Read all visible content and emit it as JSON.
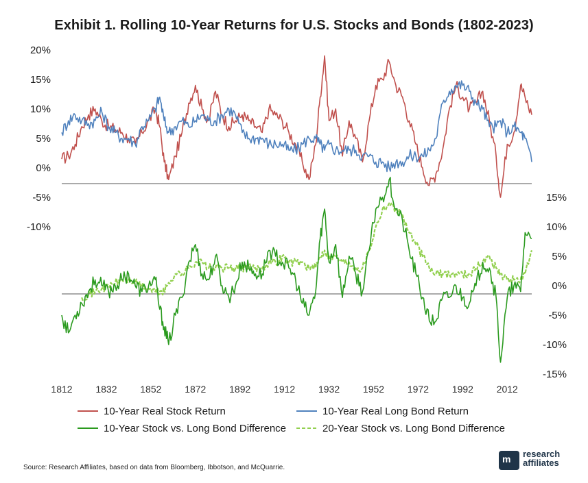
{
  "title": "Exhibit 1. Rolling 10-Year Returns for U.S. Stocks and Bonds (1802-2023)",
  "source": "Source: Research Affiliates, based on data from Bloomberg, Ibbotson, and McQuarrie.",
  "logo": {
    "line1": "research",
    "line2": "affiliates",
    "mark": "m",
    "icon": "research-affiliates-logo-icon"
  },
  "colors": {
    "stock": "#c0504d",
    "bond": "#4f81bd",
    "diff10": "#2a9a1e",
    "diff20": "#92d050"
  },
  "chart_data": [
    {
      "type": "line",
      "panel": "top",
      "ylim": [
        -5,
        20
      ],
      "yticks": [
        "20%",
        "15%",
        "10%",
        "5%",
        "0%",
        "-5%",
        "-10%"
      ],
      "xlim": [
        1812,
        2023
      ],
      "x": [
        1812,
        1815,
        1818,
        1821,
        1824,
        1827,
        1830,
        1833,
        1836,
        1839,
        1842,
        1845,
        1848,
        1851,
        1854,
        1856,
        1858,
        1860,
        1863,
        1866,
        1869,
        1872,
        1875,
        1878,
        1881,
        1884,
        1887,
        1890,
        1893,
        1896,
        1899,
        1902,
        1905,
        1908,
        1911,
        1914,
        1917,
        1920,
        1923,
        1926,
        1928,
        1930,
        1932,
        1935,
        1938,
        1941,
        1944,
        1947,
        1950,
        1953,
        1956,
        1959,
        1962,
        1965,
        1968,
        1971,
        1974,
        1977,
        1980,
        1983,
        1986,
        1989,
        1992,
        1995,
        1998,
        2001,
        2004,
        2007,
        2009,
        2012,
        2015,
        2018,
        2020,
        2023
      ],
      "series": [
        {
          "name": "10-Year Real Stock Return",
          "values": [
            1.5,
            2,
            4,
            7,
            9,
            10,
            8,
            7,
            6.5,
            6,
            5,
            4,
            6,
            8,
            10,
            7,
            1,
            -2,
            2,
            6,
            11,
            14,
            10,
            8,
            13,
            9,
            7,
            8,
            9,
            8,
            7,
            6,
            10,
            9,
            8,
            6,
            4,
            1,
            -2,
            4,
            12,
            19,
            8,
            10,
            2,
            8,
            5,
            1,
            8,
            14,
            15,
            18,
            14,
            12,
            8,
            4,
            0,
            -3,
            -1,
            3,
            10,
            14,
            12,
            10,
            11,
            13,
            8,
            2,
            -5,
            4,
            6,
            14,
            12,
            9
          ]
        },
        {
          "name": "10-Year Real Long Bond Return",
          "values": [
            6,
            8,
            9,
            8,
            7.5,
            8,
            9.5,
            7,
            6,
            5,
            5,
            4,
            7,
            8,
            10,
            12,
            8,
            6,
            7,
            8,
            7,
            8,
            9,
            8,
            8,
            9,
            10,
            9,
            6,
            5,
            5,
            5,
            4,
            4,
            4,
            3,
            3,
            4,
            5,
            5,
            4,
            3,
            4,
            3,
            3,
            3,
            3,
            2,
            2,
            1,
            1,
            0,
            1,
            1,
            2,
            2,
            2,
            3,
            5,
            11,
            13,
            14,
            14,
            13,
            11,
            10,
            7,
            7,
            8,
            6,
            7,
            6,
            5,
            1
          ]
        }
      ]
    },
    {
      "type": "line",
      "panel": "bottom",
      "ylim": [
        -15,
        15
      ],
      "yticks": [
        "15%",
        "10%",
        "5%",
        "0%",
        "-5%",
        "-10%",
        "-15%"
      ],
      "xlim": [
        1812,
        2023
      ],
      "xticks": [
        "1812",
        "1832",
        "1852",
        "1872",
        "1892",
        "1912",
        "1932",
        "1952",
        "1972",
        "1992",
        "2012"
      ],
      "x": [
        1812,
        1815,
        1818,
        1821,
        1824,
        1827,
        1830,
        1833,
        1836,
        1839,
        1842,
        1845,
        1848,
        1851,
        1854,
        1856,
        1858,
        1860,
        1863,
        1866,
        1869,
        1872,
        1875,
        1878,
        1881,
        1884,
        1887,
        1890,
        1893,
        1896,
        1899,
        1902,
        1905,
        1908,
        1911,
        1914,
        1917,
        1920,
        1923,
        1926,
        1928,
        1930,
        1932,
        1935,
        1938,
        1941,
        1944,
        1947,
        1950,
        1953,
        1956,
        1959,
        1962,
        1965,
        1968,
        1971,
        1974,
        1977,
        1980,
        1983,
        1986,
        1989,
        1992,
        1995,
        1998,
        2001,
        2004,
        2007,
        2009,
        2012,
        2015,
        2018,
        2020,
        2023
      ],
      "series": [
        {
          "name": "10-Year Stock vs. Long Bond Difference",
          "values": [
            -5,
            -8,
            -5,
            -3,
            -1,
            1,
            0,
            -1,
            0,
            1,
            2,
            0,
            -1,
            0,
            1,
            -4,
            -7,
            -10,
            -5,
            -2,
            4,
            7,
            2,
            1,
            5,
            0,
            -2,
            0,
            4,
            3,
            2,
            2,
            6,
            5,
            4,
            3,
            1,
            -3,
            -5,
            -1,
            8,
            13,
            4,
            7,
            -2,
            5,
            2,
            -1,
            6,
            13,
            15,
            18,
            13,
            11,
            6,
            2,
            -2,
            -6,
            -6,
            -2,
            -2,
            0,
            -2,
            -3,
            0,
            4,
            3,
            -2,
            -13,
            -2,
            0,
            -1,
            9,
            8
          ]
        },
        {
          "name": "20-Year Stock vs. Long Bond Difference",
          "values": [
            null,
            null,
            null,
            -2,
            -1.5,
            -1,
            -0.5,
            0,
            0.5,
            1,
            1,
            0.5,
            0,
            -0.5,
            -1,
            -1,
            -1,
            0.5,
            2,
            2,
            3,
            4,
            4,
            3,
            3,
            3,
            3,
            3,
            3,
            3,
            3,
            3,
            4,
            4,
            5,
            4,
            4,
            4,
            3,
            3,
            5,
            6,
            5,
            5,
            4,
            4,
            3,
            3,
            6,
            10,
            13,
            14,
            13,
            12,
            9,
            7,
            5,
            3,
            2,
            2,
            2,
            2,
            2,
            2,
            3,
            4,
            5,
            3,
            2,
            1,
            1,
            1,
            2,
            6
          ]
        }
      ]
    }
  ]
}
